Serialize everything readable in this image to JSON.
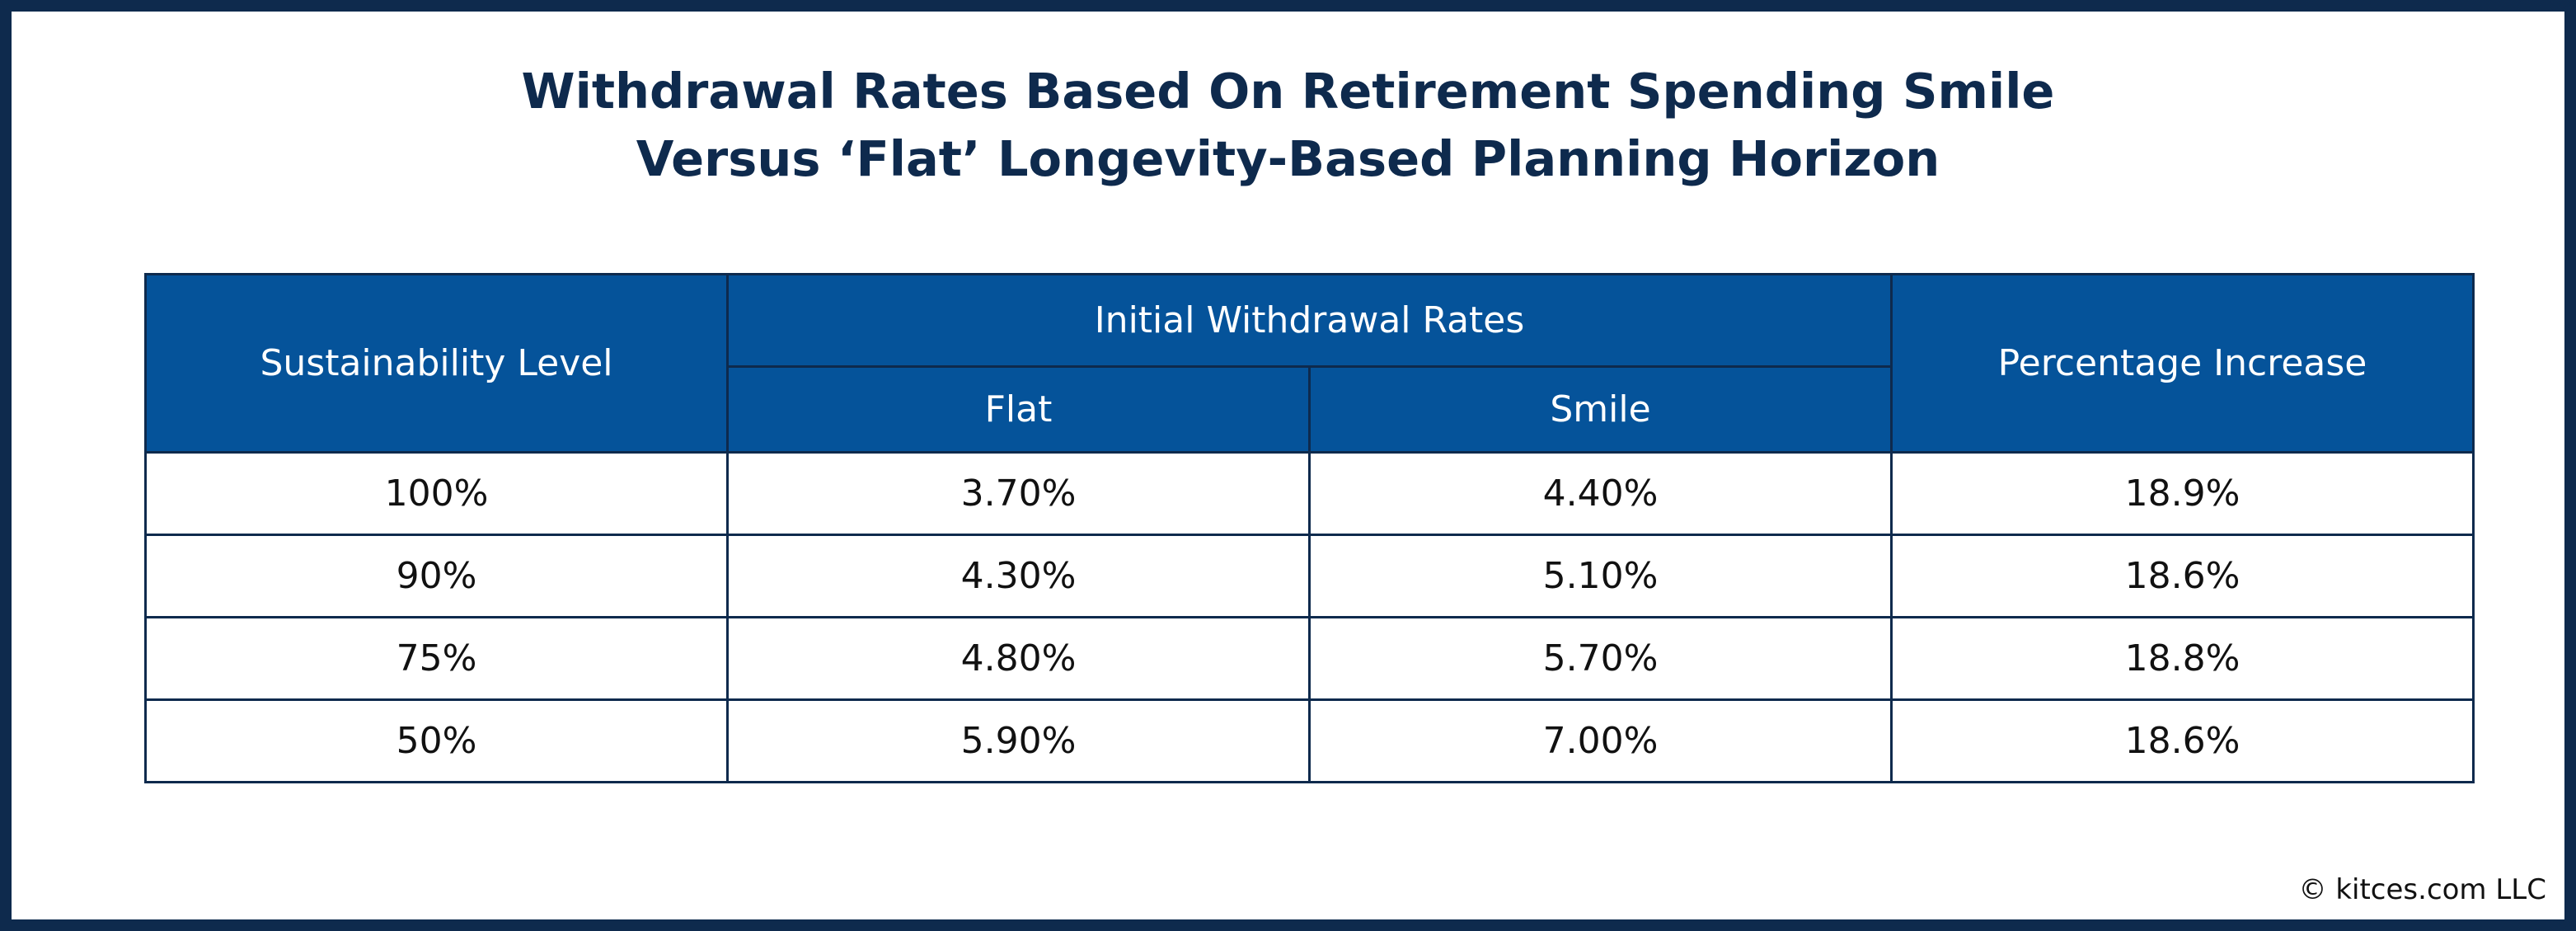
{
  "title": {
    "line1": "Withdrawal Rates Based On Retirement Spending Smile",
    "line2": "Versus ‘Flat’ Longevity-Based Planning Horizon"
  },
  "table": {
    "header": {
      "sustainability": "Sustainability Level",
      "initial_rates": "Initial Withdrawal Rates",
      "flat": "Flat",
      "smile": "Smile",
      "increase": "Percentage Increase"
    },
    "rows": [
      {
        "level": "100%",
        "flat": "3.70%",
        "smile": "4.40%",
        "increase": "18.9%"
      },
      {
        "level": "90%",
        "flat": "4.30%",
        "smile": "5.10%",
        "increase": "18.6%"
      },
      {
        "level": "75%",
        "flat": "4.80%",
        "smile": "5.70%",
        "increase": "18.8%"
      },
      {
        "level": "50%",
        "flat": "5.90%",
        "smile": "7.00%",
        "increase": "18.6%"
      }
    ]
  },
  "footer": {
    "copyright": "© kitces.com LLC"
  },
  "colors": {
    "border_navy": "#0e2a4d",
    "header_blue": "#05539a",
    "title_navy": "#0e2a4d"
  }
}
